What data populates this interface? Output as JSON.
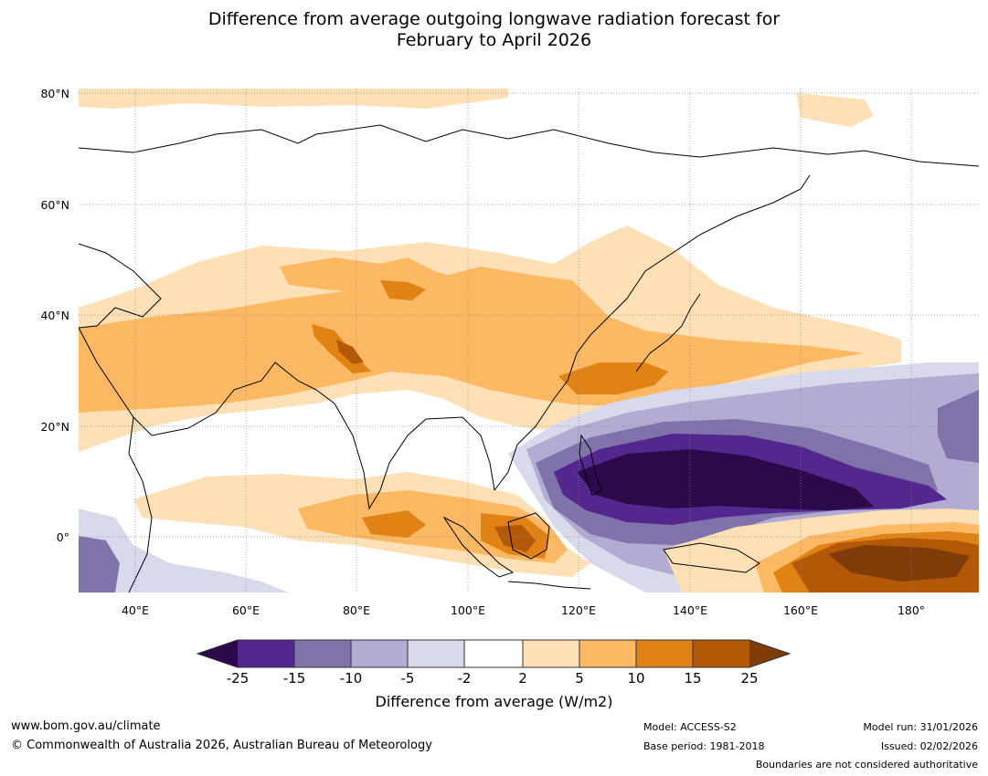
{
  "title_line1": "Difference from average outgoing longwave radiation forecast for",
  "title_line2": "February to April 2026",
  "latitude_labels": [
    "80°N",
    "60°N",
    "40°N",
    "20°N",
    "0°"
  ],
  "longitude_labels": [
    "40°E",
    "60°E",
    "80°E",
    "100°E",
    "120°E",
    "140°E",
    "160°E",
    "180°"
  ],
  "colorbar": {
    "ticks": [
      "-25",
      "-15",
      "-10",
      "-5",
      "-2",
      "2",
      "5",
      "10",
      "15",
      "25"
    ],
    "label": "Difference from average (W/m2)",
    "colors": [
      "#2b0a4b",
      "#54278f",
      "#8073ac",
      "#b2abd2",
      "#d8daeb",
      "#ffffff",
      "#fee0b6",
      "#fdb863",
      "#e08214",
      "#b35806",
      "#7f3b08"
    ]
  },
  "footer": {
    "website": "www.bom.gov.au/climate",
    "copyright": "© Commonwealth of Australia 2026, Australian Bureau of Meteorology",
    "model": "Model: ACCESS-S2",
    "base_period": "Base period: 1981-2018",
    "model_run": "Model run: 31/01/2026",
    "issued": "Issued: 02/02/2026",
    "disclaimer": "Boundaries are not considered authoritative"
  }
}
